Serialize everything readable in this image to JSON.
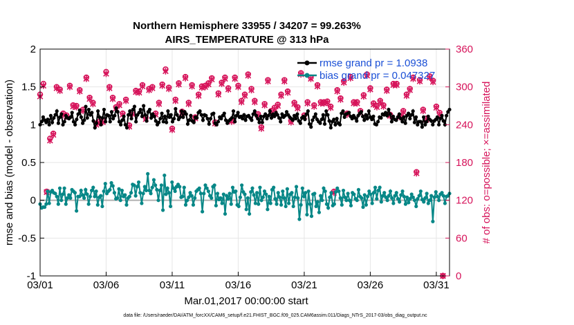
{
  "chart_data": {
    "type": "line",
    "title": "Northern Hemisphere 33955 / 34207 = 99.263%",
    "subtitle": "AIRS_TEMPERATURE @ 313 hPa",
    "xlabel": "Mar.01,2017 00:00:00 start",
    "ylabel": "rmse and bias (model - observation)",
    "y2label": "# of obs: o=possible; ×=assimilated",
    "xlim": [
      1,
      32
    ],
    "ylim": [
      -1,
      2
    ],
    "y2lim": [
      0,
      360
    ],
    "x_tick_values": [
      1,
      6,
      11,
      16,
      21,
      26,
      31
    ],
    "x_tick_labels": [
      "03/01",
      "03/06",
      "03/11",
      "03/16",
      "03/21",
      "03/26",
      "03/31"
    ],
    "y_tick_labels": [
      "-1",
      "-0.5",
      "0",
      "0.5",
      "1",
      "1.5",
      "2"
    ],
    "y2_tick_labels": [
      "0",
      "60",
      "120",
      "180",
      "240",
      "300",
      "360"
    ],
    "grid": true,
    "legend": {
      "location": "top-right",
      "entries": [
        "rmse grand pr = 1.0938",
        "bias grand pr = 0.047327"
      ]
    },
    "footnote": "data file: /Users/raeder/DAI/ATM_forcXX/CAM6_setup/f.e21.FHIST_BGC.f09_025.CAM6assim.011/Diags_NTrS_2017-03/obs_diag_output.nc",
    "series": [
      {
        "name": "rmse",
        "color": "#000000",
        "axis": "left",
        "values": [
          1.0,
          1.04,
          1.1,
          1.06,
          1.03,
          1.07,
          1.0,
          1.12,
          1.03,
          1.09,
          1.13,
          1.18,
          1.02,
          1.1,
          1.14,
          1.0,
          1.04,
          1.12,
          1.09,
          1.08,
          1.1,
          1.16,
          1.04,
          1.0,
          1.07,
          1.14,
          1.19,
          1.1,
          1.02,
          1.06,
          1.24,
          1.09,
          1.2,
          1.13,
          1.16,
          1.05,
          0.96,
          1.02,
          1.18,
          1.1,
          1.0,
          1.09,
          1.2,
          1.04,
          1.13,
          1.12,
          1.04,
          1.17,
          1.08,
          1.12,
          1.22,
          1.17,
          1.04,
          1.0,
          1.06,
          1.11,
          1.0,
          0.96,
          1.13,
          1.18,
          1.08,
          1.2,
          1.24,
          1.04,
          1.13,
          1.16,
          1.2,
          1.11,
          1.25,
          1.13,
          1.05,
          1.17,
          1.2,
          1.09,
          1.14,
          1.11,
          1.05,
          1.0,
          1.03,
          1.08,
          1.15,
          1.04,
          1.11,
          1.03,
          1.18,
          1.1,
          1.13,
          1.04,
          1.08,
          1.21,
          1.13,
          1.07,
          1.1,
          1.18,
          1.1,
          1.17,
          1.14,
          1.01,
          1.06,
          1.12,
          1.05,
          1.03,
          1.1,
          1.09,
          1.16,
          1.18,
          1.13,
          1.06,
          1.13,
          1.12,
          1.08,
          1.01,
          1.08,
          1.14,
          1.15,
          1.02,
          1.0,
          1.04,
          1.1,
          1.08,
          1.12,
          1.15,
          1.06,
          1.02,
          1.05,
          1.07,
          1.09,
          1.18,
          1.04,
          1.12,
          1.16,
          1.1,
          1.11,
          1.08,
          1.13,
          1.06,
          1.11,
          1.12,
          1.09,
          1.06,
          1.14,
          1.18,
          1.12,
          1.08,
          1.03,
          1.11,
          1.03,
          1.11,
          1.14,
          1.08,
          1.12,
          1.18,
          1.09,
          1.14,
          1.11,
          1.16,
          1.13,
          1.09,
          1.04,
          1.14,
          1.1,
          1.12,
          1.17,
          1.13,
          1.1,
          1.08,
          1.06,
          1.12,
          1.08,
          1.14,
          1.05,
          1.02,
          1.09,
          1.11,
          1.07,
          1.14,
          1.18,
          1.01,
          0.97,
          1.06,
          1.1,
          1.14,
          1.07,
          1.04,
          1.02,
          1.07,
          1.13,
          1.01,
          1.18,
          1.13,
          1.05,
          0.96,
          1.04,
          1.07,
          1.0,
          1.08,
          1.02,
          1.0,
          1.15,
          1.18,
          1.1,
          1.14,
          1.15,
          1.16,
          1.11,
          1.08,
          1.12,
          1.09,
          1.05,
          1.12,
          1.15,
          1.17,
          1.11,
          1.06,
          1.13,
          1.08,
          1.18,
          1.1,
          1.07,
          1.11,
          1.01,
          1.0,
          1.04,
          1.1,
          1.09,
          1.14,
          1.13,
          1.16,
          1.12,
          1.2,
          1.14,
          1.04,
          1.11,
          1.07,
          1.06,
          1.1,
          1.14,
          1.08,
          1.04,
          1.1,
          1.02,
          1.12,
          1.15,
          1.08,
          1.13,
          1.18,
          1.03,
          1.1,
          1.0,
          1.04,
          1.04,
          0.97,
          1.1,
          1.0,
          1.04,
          1.11,
          1.07,
          1.05,
          1.0,
          1.05,
          1.07,
          1.1,
          1.0,
          1.08,
          1.12,
          1.05,
          1.0,
          1.12,
          1.17,
          1.2
        ]
      },
      {
        "name": "bias",
        "color": "#078787",
        "axis": "left",
        "values": [
          -0.05,
          -0.1,
          -0.09,
          -0.09,
          -0.05,
          0.12,
          -0.04,
          0.11,
          0.13,
          0.1,
          0.09,
          0.05,
          -0.05,
          0.16,
          0.0,
          0.08,
          0.16,
          -0.05,
          0.03,
          0.07,
          0.03,
          0.14,
          0.12,
          0.1,
          -0.14,
          0.05,
          0.05,
          0.13,
          0.07,
          0.03,
          0.14,
          0.08,
          -0.05,
          0.05,
          0.13,
          0.17,
          0.05,
          0.12,
          -0.06,
          0.04,
          0.06,
          -0.08,
          0.12,
          0.22,
          0.09,
          0.12,
          0.14,
          0.23,
          0.19,
          0.1,
          0.02,
          0.03,
          0.15,
          0.0,
          0.13,
          0.05,
          0.07,
          -0.06,
          0.03,
          0.05,
          0.1,
          0.21,
          0.2,
          0.06,
          0.18,
          0.24,
          0.1,
          -0.04,
          0.09,
          0.18,
          0.13,
          0.35,
          0.13,
          0.09,
          0.17,
          0.27,
          0.2,
          0.14,
          0.0,
          0.13,
          0.2,
          -0.13,
          0.33,
          0.08,
          0.16,
          0.1,
          -0.08,
          0.24,
          0.16,
          0.12,
          0.18,
          0.21,
          0.18,
          0.04,
          0.05,
          0.17,
          -0.06,
          0.0,
          0.04,
          0.1,
          0.06,
          -0.06,
          0.03,
          0.12,
          0.14,
          0.16,
          0.09,
          -0.15,
          0.09,
          0.2,
          0.16,
          0.12,
          0.06,
          0.03,
          0.18,
          0.2,
          -0.07,
          0.09,
          0.01,
          0.03,
          -0.04,
          0.08,
          -0.18,
          0.06,
          0.02,
          0.09,
          -0.05,
          0.17,
          0.11,
          0.12,
          -0.06,
          -0.08,
          0.04,
          0.2,
          0.11,
          0.08,
          -0.12,
          0.03,
          -0.18,
          0.11,
          0.16,
          0.07,
          -0.04,
          0.1,
          -0.05,
          0.17,
          0.0,
          0.04,
          0.12,
          0.08,
          -0.12,
          0.05,
          -0.04,
          0.14,
          0.17,
          0.02,
          -0.05,
          0.1,
          0.04,
          -0.06,
          0.12,
          0.03,
          -0.08,
          0.15,
          -0.04,
          0.08,
          0.1,
          -0.08,
          0.04,
          0.18,
          0.03,
          -0.25,
          -0.06,
          0.16,
          0.05,
          0.1,
          -0.19,
          0.12,
          -0.05,
          -0.21,
          0.08,
          0.09,
          -0.08,
          -0.02,
          -0.16,
          0.06,
          0.0,
          0.16,
          0.12,
          -0.05,
          -0.1,
          0.04,
          0.1,
          -0.07,
          -0.05,
          0.11,
          0.16,
          0.12,
          0.03,
          -0.06,
          0.13,
          0.04,
          0.0,
          0.09,
          0.0,
          -0.07,
          0.1,
          0.08,
          0.02,
          0.0,
          0.14,
          0.05,
          0.03,
          -0.09,
          0.07,
          -0.06,
          0.05,
          0.12,
          0.08,
          -0.04,
          0.1,
          0.17,
          0.02,
          0.13,
          0.17,
          -0.02,
          0.06,
          0.1,
          0.04,
          0.0,
          0.06,
          0.12,
          0.03,
          -0.04,
          0.06,
          0.1,
          0.02,
          -0.02,
          0.07,
          0.12,
          0.05,
          -0.05,
          0.04,
          -0.03,
          0.02,
          0.08,
          0.04,
          0.0,
          -0.08,
          0.02,
          0.06,
          0.12,
          0.01,
          -0.02,
          0.03,
          0.09,
          -0.04,
          0.0,
          0.06,
          -0.28,
          0.04,
          0.11,
          0.05,
          0.0,
          0.08,
          0.1,
          0.06,
          -0.04,
          0.05,
          0.06,
          0.09
        ]
      },
      {
        "name": "possible_obs",
        "color": "#d6135a",
        "axis": "right",
        "marker": "o",
        "x": [
          1.0,
          1.25,
          1.5,
          1.75,
          2.0,
          2.25,
          2.5,
          2.75,
          3.0,
          3.25,
          3.5,
          3.75,
          4.0,
          4.25,
          4.5,
          4.75,
          5.0,
          5.25,
          5.5,
          5.75,
          6.0,
          6.25,
          6.5,
          6.75,
          7.0,
          7.25,
          7.5,
          7.75,
          8.0,
          8.25,
          8.5,
          8.75,
          9.0,
          9.25,
          9.5,
          9.75,
          10.0,
          10.25,
          10.5,
          10.75,
          11.0,
          11.25,
          11.5,
          11.75,
          12.0,
          12.25,
          12.5,
          12.75,
          13.0,
          13.25,
          13.5,
          13.75,
          14.0,
          14.25,
          14.5,
          14.75,
          15.0,
          15.25,
          15.5,
          15.75,
          16.0,
          16.25,
          16.5,
          16.75,
          17.0,
          17.25,
          17.5,
          17.75,
          18.0,
          18.25,
          18.5,
          18.75,
          19.0,
          19.25,
          19.5,
          19.75,
          20.0,
          20.25,
          20.5,
          20.75,
          21.0,
          21.25,
          21.5,
          21.75,
          22.0,
          22.25,
          22.5,
          22.75,
          23.0,
          23.25,
          23.5,
          23.75,
          24.0,
          24.25,
          24.5,
          24.75,
          25.0,
          25.25,
          25.5,
          25.75,
          26.0,
          26.25,
          26.5,
          26.75,
          27.0,
          27.25,
          27.5,
          27.75,
          28.0,
          28.25,
          28.5,
          28.75,
          29.0,
          29.25,
          29.5,
          29.75,
          30.0,
          30.25,
          30.5,
          30.75,
          31.0,
          31.25,
          31.5
        ],
        "values": [
          288,
          305,
          134,
          218,
          226,
          300,
          296,
          258,
          255,
          302,
          271,
          270,
          295,
          264,
          315,
          283,
          275,
          242,
          245,
          246,
          324,
          300,
          283,
          268,
          273,
          258,
          280,
          239,
          259,
          294,
          293,
          303,
          251,
          297,
          300,
          258,
          275,
          304,
          328,
          299,
          234,
          280,
          306,
          261,
          316,
          275,
          303,
          252,
          288,
          301,
          302,
          306,
          314,
          244,
          290,
          307,
          315,
          298,
          247,
          315,
          302,
          278,
          288,
          320,
          297,
          278,
          257,
          236,
          273,
          311,
          262,
          267,
          272,
          288,
          311,
          293,
          246,
          275,
          268,
          322,
          255,
          276,
          315,
          271,
          303,
          276,
          276,
          277,
          269,
          134,
          295,
          282,
          309,
          258,
          316,
          276,
          276,
          262,
          287,
          320,
          298,
          274,
          270,
          278,
          271,
          296,
          256,
          305,
          305,
          254,
          262,
          288,
          297,
          315,
          165,
          311,
          264,
          250,
          317,
          310,
          269,
          259,
          0
        ]
      },
      {
        "name": "assimilated_obs",
        "color": "#d6135a",
        "axis": "right",
        "marker": "x",
        "x": [
          1.0,
          1.25,
          1.5,
          1.75,
          2.0,
          2.25,
          2.5,
          2.75,
          3.0,
          3.25,
          3.5,
          3.75,
          4.0,
          4.25,
          4.5,
          4.75,
          5.0,
          5.25,
          5.5,
          5.75,
          6.0,
          6.25,
          6.5,
          6.75,
          7.0,
          7.25,
          7.5,
          7.75,
          8.0,
          8.25,
          8.5,
          8.75,
          9.0,
          9.25,
          9.5,
          9.75,
          10.0,
          10.25,
          10.5,
          10.75,
          11.0,
          11.25,
          11.5,
          11.75,
          12.0,
          12.25,
          12.5,
          12.75,
          13.0,
          13.25,
          13.5,
          13.75,
          14.0,
          14.25,
          14.5,
          14.75,
          15.0,
          15.25,
          15.5,
          15.75,
          16.0,
          16.25,
          16.5,
          16.75,
          17.0,
          17.25,
          17.5,
          17.75,
          18.0,
          18.25,
          18.5,
          18.75,
          19.0,
          19.25,
          19.5,
          19.75,
          20.0,
          20.25,
          20.5,
          20.75,
          21.0,
          21.25,
          21.5,
          21.75,
          22.0,
          22.25,
          22.5,
          22.75,
          23.0,
          23.25,
          23.5,
          23.75,
          24.0,
          24.25,
          24.5,
          24.75,
          25.0,
          25.25,
          25.5,
          25.75,
          26.0,
          26.25,
          26.5,
          26.75,
          27.0,
          27.25,
          27.5,
          27.75,
          28.0,
          28.25,
          28.5,
          28.75,
          29.0,
          29.25,
          29.5,
          29.75,
          30.0,
          30.25,
          30.5,
          30.75,
          31.0,
          31.25,
          31.5
        ],
        "values": [
          285,
          302,
          133,
          215,
          224,
          298,
          294,
          256,
          253,
          300,
          269,
          268,
          293,
          262,
          313,
          281,
          273,
          240,
          243,
          244,
          321,
          298,
          281,
          266,
          271,
          256,
          278,
          237,
          257,
          292,
          291,
          301,
          249,
          295,
          298,
          256,
          273,
          302,
          325,
          297,
          232,
          278,
          304,
          259,
          314,
          273,
          301,
          250,
          286,
          299,
          300,
          304,
          312,
          242,
          288,
          305,
          313,
          296,
          245,
          313,
          300,
          276,
          286,
          318,
          295,
          276,
          255,
          234,
          271,
          309,
          260,
          265,
          270,
          286,
          309,
          291,
          244,
          273,
          266,
          320,
          253,
          274,
          313,
          269,
          301,
          274,
          274,
          275,
          267,
          132,
          293,
          280,
          307,
          256,
          314,
          274,
          274,
          260,
          285,
          318,
          296,
          272,
          268,
          276,
          269,
          294,
          254,
          303,
          303,
          252,
          260,
          286,
          295,
          313,
          163,
          309,
          262,
          248,
          315,
          308,
          267,
          257,
          0
        ]
      }
    ]
  }
}
